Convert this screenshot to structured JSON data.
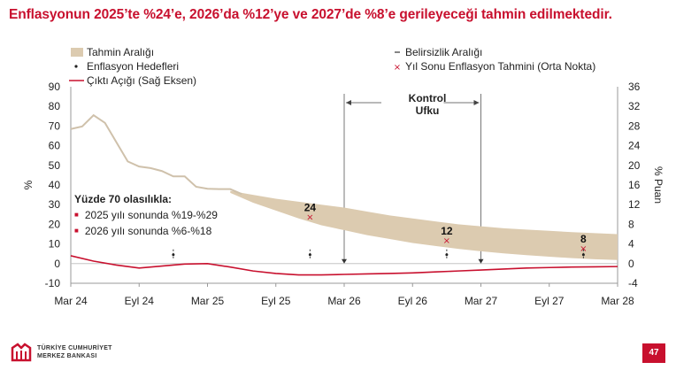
{
  "title": "Enflasyonun 2025’te %24’e, 2026’da %12’ye ve 2027’de %8’e gerileyeceği tahmin edilmektedir.",
  "legend": {
    "range": "Tahmin Aralığı",
    "uncertainty": "Belirsizlik Aralığı",
    "targets": "Enflasyon Hedefleri",
    "midpoint": "Yıl Sonu Enflasyon Tahmini (Orta Nokta)",
    "gap": "Çıktı Açığı (Sağ Eksen)"
  },
  "annotation": {
    "header": "Yüzde 70 olasılıkla:",
    "item1": "2025 yılı sonunda %19-%29",
    "item2": "2026 yılı sonunda %6-%18"
  },
  "kontrol_line1": "Kontrol",
  "kontrol_line2": "Ufku",
  "footer": {
    "brand_line1": "TÜRKİYE CUMHURİYET",
    "brand_line2": "MERKEZ BANKASI",
    "page": "47"
  },
  "colors": {
    "band": "#dccbb0",
    "inflation": "#cfc1ab",
    "gap": "#c8102e",
    "marker": "#c8102e",
    "accent": "#c8102e"
  },
  "chart_data": {
    "type": "line",
    "x_ticks": [
      "Mar 24",
      "Eyl 24",
      "Mar 25",
      "Eyl 25",
      "Mar 26",
      "Eyl 26",
      "Mar 27",
      "Eyl 27",
      "Mar 28"
    ],
    "xlim": [
      0,
      48
    ],
    "y_left": {
      "label": "%",
      "lim": [
        -10,
        90
      ],
      "ticks": [
        -10,
        0,
        10,
        20,
        30,
        40,
        50,
        60,
        70,
        80,
        90
      ]
    },
    "y_right": {
      "label": "% Puan",
      "lim": [
        -4,
        36
      ],
      "ticks": [
        -4,
        0,
        4,
        8,
        12,
        16,
        20,
        24,
        28,
        32,
        36
      ]
    },
    "inflation": {
      "x": [
        0,
        1,
        2,
        3,
        4,
        5,
        6,
        7,
        8,
        9,
        10,
        11,
        12,
        13,
        14,
        15
      ],
      "y": [
        68.5,
        69.8,
        75.5,
        71.6,
        61.8,
        52.0,
        49.4,
        48.6,
        47.1,
        44.4,
        44.4,
        39.1,
        38.1,
        37.9,
        37.9,
        35.4
      ]
    },
    "band": {
      "x": [
        14,
        16,
        18,
        20,
        22,
        24,
        26,
        28,
        30,
        32,
        34,
        36,
        38,
        40,
        42,
        44,
        46,
        48
      ],
      "upper": [
        37,
        35,
        33,
        31.5,
        30,
        28.5,
        26.5,
        24.5,
        23,
        21.5,
        20,
        19,
        18,
        17.3,
        16.7,
        16,
        15.5,
        15
      ],
      "lower": [
        36,
        31,
        27,
        23,
        19.5,
        17,
        14.5,
        12.5,
        10.5,
        9,
        7.5,
        6.3,
        5.2,
        4.3,
        3.5,
        2.8,
        2.2,
        1.8
      ]
    },
    "output_gap": {
      "x": [
        0,
        2,
        4,
        6,
        8,
        10,
        12,
        14,
        16,
        18,
        20,
        22,
        24,
        26,
        28,
        30,
        32,
        34,
        36,
        38,
        40,
        42,
        44,
        46,
        48
      ],
      "y": [
        1.6,
        0.5,
        -0.3,
        -0.9,
        -0.5,
        -0.1,
        0,
        -0.7,
        -1.5,
        -2.0,
        -2.3,
        -2.3,
        -2.2,
        -2.1,
        -2.0,
        -1.9,
        -1.7,
        -1.5,
        -1.3,
        -1.1,
        -0.9,
        -0.8,
        -0.7,
        -0.65,
        -0.6
      ]
    },
    "targets": [
      {
        "x": 9,
        "value": 4.5
      },
      {
        "x": 21,
        "value": 4.5
      },
      {
        "x": 33,
        "value": 4.5
      },
      {
        "x": 45,
        "value": 4.5
      }
    ],
    "midpoints": [
      {
        "x": 21,
        "value": 24,
        "label": "24"
      },
      {
        "x": 33,
        "value": 12,
        "label": "12"
      },
      {
        "x": 45,
        "value": 8,
        "label": "8"
      }
    ],
    "control_horizon": {
      "start": 24,
      "end": 36
    }
  }
}
